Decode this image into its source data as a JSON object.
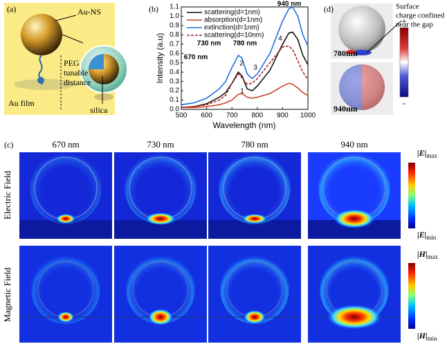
{
  "panel_a": {
    "label": "(a)",
    "au_ns": "Au-NS",
    "peg_lines": [
      "PEG",
      "tunable",
      "distance"
    ],
    "au_film": "Au film",
    "silica": "silica"
  },
  "chart_data": {
    "type": "line",
    "label": "(b)",
    "xlabel": "Wavelength (nm)",
    "ylabel": "Intensity (a.u)",
    "xlim": [
      500,
      1000
    ],
    "xticks": [
      500,
      600,
      700,
      800,
      900,
      1000
    ],
    "ylim": [
      0,
      1.1
    ],
    "yticks": [
      {
        "value": 0,
        "label": "0.0"
      },
      0.1,
      0.2,
      0.3,
      0.4,
      0.5,
      0.6,
      0.7,
      0.8,
      0.9,
      {
        "value": 1,
        "label": "1.0"
      },
      1.1
    ],
    "x": [
      500,
      550,
      600,
      650,
      675,
      700,
      725,
      740,
      760,
      780,
      800,
      850,
      900,
      925,
      940,
      960,
      980,
      1000
    ],
    "series": [
      {
        "name": "scattering(d=1nm)",
        "color": "#111111",
        "dashed": false,
        "values": [
          0.02,
          0.03,
          0.06,
          0.13,
          0.18,
          0.28,
          0.4,
          0.36,
          0.22,
          0.2,
          0.25,
          0.42,
          0.7,
          0.82,
          0.83,
          0.75,
          0.58,
          0.48
        ]
      },
      {
        "name": "absorption(d=1nm)",
        "color": "#c8442a",
        "dashed": false,
        "values": [
          0.02,
          0.02,
          0.03,
          0.05,
          0.07,
          0.1,
          0.16,
          0.17,
          0.13,
          0.12,
          0.13,
          0.17,
          0.25,
          0.28,
          0.27,
          0.23,
          0.18,
          0.15
        ]
      },
      {
        "name": "extinction(d=1nm)",
        "color": "#1f6fe0",
        "dashed": false,
        "values": [
          0.05,
          0.07,
          0.12,
          0.22,
          0.3,
          0.45,
          0.58,
          0.55,
          0.38,
          0.33,
          0.38,
          0.6,
          0.95,
          1.08,
          1.1,
          1.0,
          0.8,
          0.68
        ]
      },
      {
        "name": "scattering(d=10nm)",
        "color": "#b22222",
        "dashed": true,
        "values": [
          0.02,
          0.03,
          0.05,
          0.1,
          0.15,
          0.28,
          0.38,
          0.34,
          0.27,
          0.28,
          0.33,
          0.5,
          0.67,
          0.68,
          0.64,
          0.52,
          0.4,
          0.32
        ]
      }
    ],
    "annotations": [
      "940 nm",
      "730 nm",
      "780 nm",
      "670 nm",
      "1",
      "2",
      "3",
      "4"
    ]
  },
  "panel_c": {
    "label": "(c)",
    "columns": [
      "670 nm",
      "730 nm",
      "780 nm",
      "940 nm"
    ],
    "rows": [
      "Electric Field",
      "Magnetic Field"
    ],
    "colorbars": [
      {
        "symbol": "|E|",
        "max": "max",
        "min": "min"
      },
      {
        "symbol": "|H|",
        "max": "max",
        "min": "min"
      }
    ]
  },
  "panel_d": {
    "label": "(d)",
    "note_lines": [
      "Surface",
      "charge confined",
      "near the gap"
    ],
    "maps": [
      "780nm",
      "940nm"
    ],
    "plus": "+",
    "minus": "-"
  }
}
